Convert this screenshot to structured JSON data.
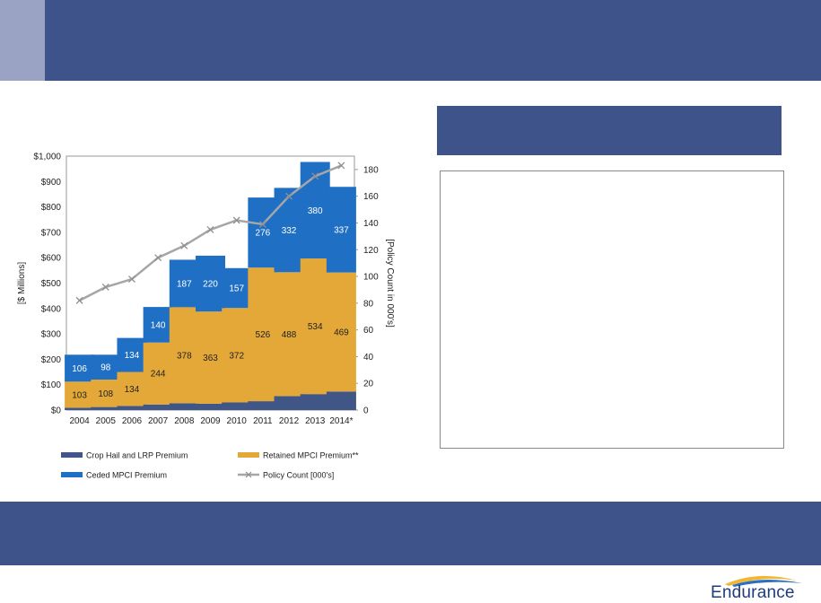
{
  "brand": {
    "name": "Endurance"
  },
  "colors": {
    "banner": "#3d5389",
    "accent": "#9aa3c3",
    "crop_hail": "#3f5687",
    "retained": "#e3a838",
    "ceded": "#1f6fc5",
    "policy_line": "#a6a6a6"
  },
  "chart_data": {
    "type": "bar",
    "stacked": true,
    "categories": [
      "2004",
      "2005",
      "2006",
      "2007",
      "2008",
      "2009",
      "2010",
      "2011",
      "2012",
      "2013",
      "2014*"
    ],
    "series": [
      {
        "name": "Crop Hail and LRP Premium",
        "values": [
          9,
          12,
          16,
          22,
          27,
          25,
          30,
          35,
          55,
          63,
          73
        ],
        "labels": false
      },
      {
        "name": "Retained MPCI Premium**",
        "values": [
          103,
          108,
          134,
          244,
          378,
          363,
          372,
          526,
          488,
          534,
          469
        ],
        "labels": true
      },
      {
        "name": "Ceded MPCI Premium",
        "values": [
          106,
          98,
          134,
          140,
          187,
          220,
          157,
          276,
          332,
          380,
          337
        ],
        "labels": true
      }
    ],
    "line_series": {
      "name": "Policy Count [000's]",
      "axis": "right",
      "values": [
        82,
        92,
        98,
        114,
        123,
        135,
        142,
        139,
        160,
        175,
        183
      ]
    },
    "ylabel": "[$ Millions]",
    "y2label": "[Policy Count in 000's]",
    "ylim": [
      0,
      1000
    ],
    "y2lim": [
      0,
      190
    ],
    "yticks": [
      "$0",
      "$100",
      "$200",
      "$300",
      "$400",
      "$500",
      "$600",
      "$700",
      "$800",
      "$900",
      "$1,000"
    ],
    "y2ticks": [
      "0",
      "20",
      "40",
      "60",
      "80",
      "100",
      "120",
      "140",
      "160",
      "180"
    ],
    "legend": [
      "Crop Hail and LRP Premium",
      "Retained MPCI Premium**",
      "Ceded MPCI Premium",
      "Policy Count [000's]"
    ],
    "legend_position": "bottom"
  }
}
